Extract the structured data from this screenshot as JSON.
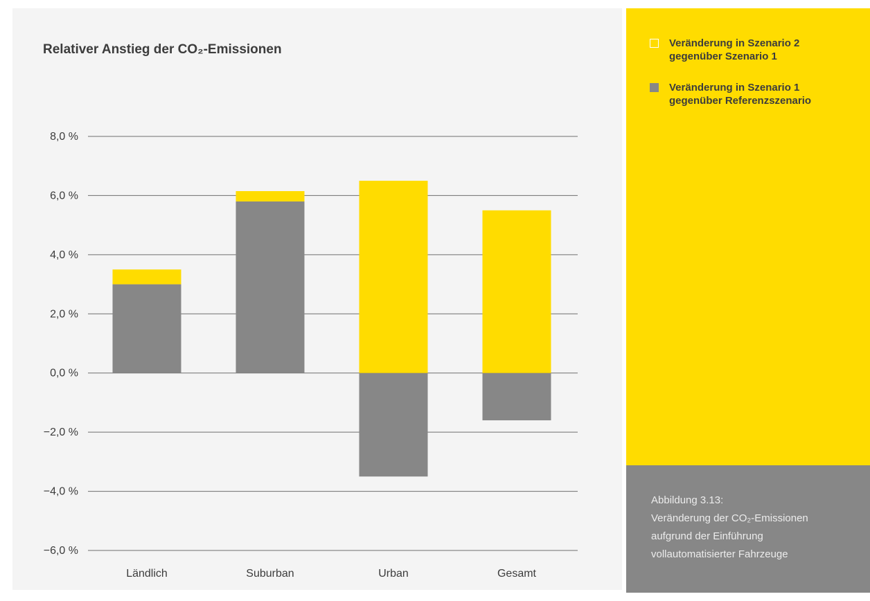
{
  "chart_data": {
    "type": "bar",
    "stacked": true,
    "title": "Relativer Anstieg der CO₂-Emissionen",
    "categories": [
      "Ländlich",
      "Suburban",
      "Urban",
      "Gesamt"
    ],
    "series": [
      {
        "name": "Veränderung in Szenario 1 gegenüber Referenzszenario",
        "color": "#878787",
        "values": [
          3.0,
          5.8,
          -3.5,
          -1.6
        ]
      },
      {
        "name": "Veränderung in Szenario 2 gegenüber Szenario 1",
        "color": "#ffdc00",
        "values": [
          0.5,
          0.35,
          6.5,
          5.5
        ]
      }
    ],
    "ylim": [
      -6,
      8
    ],
    "yticks": [
      8,
      6,
      4,
      2,
      0,
      -2,
      -4,
      -6
    ],
    "ytick_labels": [
      "8,0 %",
      "6,0 %",
      "4,0 %",
      "2,0 %",
      "0,0 %",
      "−2,0 %",
      "−4,0 %",
      "−6,0 %"
    ],
    "grid": true,
    "legend_position": "right"
  },
  "legend": {
    "items": [
      {
        "line1": "Veränderung in Szenario 2",
        "line2": "gegenüber Szenario 1",
        "swatch_color": "#ffdc00",
        "swatch_style": "outline"
      },
      {
        "line1": "Veränderung in Szenario 1",
        "line2": "gegenüber Referenzszenario",
        "swatch_color": "#878787",
        "swatch_style": "filled"
      }
    ]
  },
  "caption": {
    "line1": "Abbildung 3.13:",
    "line2": "Veränderung der CO₂-Emissionen",
    "line3": "aufgrund der Einführung",
    "line4": "vollautomatisierter Fahrzeuge"
  }
}
